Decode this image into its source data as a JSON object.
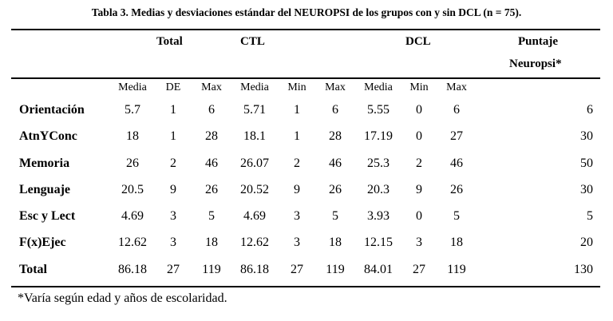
{
  "title": "Tabla 3. Medias y desviaciones estándar del NEUROPSI de los grupos con y sin DCL (n = 75).",
  "groups": {
    "total": "Total",
    "ctl": "CTL",
    "dcl": "DCL",
    "puntaje_line1": "Puntaje",
    "puntaje_line2": "Neuropsi*"
  },
  "subheaders": [
    "Media",
    "DE",
    "Max",
    "Media",
    "Min",
    "Max",
    "Media",
    "Min",
    "Max"
  ],
  "rows": [
    {
      "label": "Orientación",
      "values": [
        "5.7",
        "1",
        "6",
        "5.71",
        "1",
        "6",
        "5.55",
        "0",
        "6"
      ],
      "score": "6"
    },
    {
      "label": "AtnYConc",
      "values": [
        "18",
        "1",
        "28",
        "18.1",
        "1",
        "28",
        "17.19",
        "0",
        "27"
      ],
      "score": "30"
    },
    {
      "label": "Memoria",
      "values": [
        "26",
        "2",
        "46",
        "26.07",
        "2",
        "46",
        "25.3",
        "2",
        "46"
      ],
      "score": "50"
    },
    {
      "label": "Lenguaje",
      "values": [
        "20.5",
        "9",
        "26",
        "20.52",
        "9",
        "26",
        "20.3",
        "9",
        "26"
      ],
      "score": "30"
    },
    {
      "label": "Esc y Lect",
      "values": [
        "4.69",
        "3",
        "5",
        "4.69",
        "3",
        "5",
        "3.93",
        "0",
        "5"
      ],
      "score": "5"
    },
    {
      "label": "F(x)Ejec",
      "values": [
        "12.62",
        "3",
        "18",
        "12.62",
        "3",
        "18",
        "12.15",
        "3",
        "18"
      ],
      "score": "20"
    },
    {
      "label": "Total",
      "values": [
        "86.18",
        "27",
        "119",
        "86.18",
        "27",
        "119",
        "84.01",
        "27",
        "119"
      ],
      "score": "130"
    }
  ],
  "footnote": "*Varía según edad y años de escolaridad."
}
